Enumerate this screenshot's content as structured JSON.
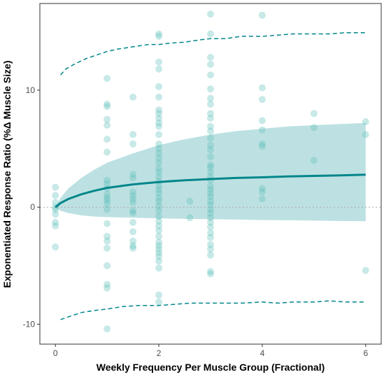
{
  "chart_data": {
    "type": "scatter",
    "title": "",
    "xlabel": "Weekly Frequency Per Muscle Group (Fractional)",
    "ylabel": "Exponentiated Response Ratio (%Δ Muscle Size)",
    "xlim": [
      -0.3,
      6.3
    ],
    "ylim": [
      -11.7,
      17.4
    ],
    "x_ticks": [
      0,
      2,
      4,
      6
    ],
    "y_ticks": [
      -10,
      0,
      10
    ],
    "grid": false,
    "reference_line_y": 0,
    "colors": {
      "points": "#5fbfbb",
      "line": "#00868b",
      "band": "#b2dcdd",
      "reference": "#a9a9a9"
    },
    "series": [
      {
        "kind": "points",
        "points": [
          [
            0,
            1.7
          ],
          [
            0,
            1.0
          ],
          [
            0,
            0.4
          ],
          [
            0,
            0.0
          ],
          [
            0,
            -0.2
          ],
          [
            0,
            -0.6
          ],
          [
            0,
            -1.3
          ],
          [
            0,
            -1.6
          ],
          [
            0,
            -3.4
          ],
          [
            1,
            11.0
          ],
          [
            1,
            8.8
          ],
          [
            1,
            8.6
          ],
          [
            1,
            7.5
          ],
          [
            1,
            7.0
          ],
          [
            1,
            5.8
          ],
          [
            1,
            4.7
          ],
          [
            1,
            2.3
          ],
          [
            1,
            2.0
          ],
          [
            1,
            1.6
          ],
          [
            1,
            1.1
          ],
          [
            1,
            0.8
          ],
          [
            1,
            0.6
          ],
          [
            1,
            0.3
          ],
          [
            1,
            -0.2
          ],
          [
            1,
            -1.4
          ],
          [
            1,
            -2.5
          ],
          [
            1,
            -2.9
          ],
          [
            1,
            -3.5
          ],
          [
            1,
            -5.0
          ],
          [
            1,
            -6.6
          ],
          [
            1,
            -6.9
          ],
          [
            1,
            -10.4
          ],
          [
            1.5,
            9.4
          ],
          [
            1.5,
            6.2
          ],
          [
            1.5,
            5.4
          ],
          [
            1.5,
            2.8
          ],
          [
            1.5,
            2.5
          ],
          [
            1.5,
            1.3
          ],
          [
            1.5,
            1.0
          ],
          [
            1.5,
            0.7
          ],
          [
            1.5,
            0.4
          ],
          [
            1.5,
            -0.3
          ],
          [
            1.5,
            -0.5
          ],
          [
            1.5,
            -1.3
          ],
          [
            1.5,
            -2.1
          ],
          [
            1.5,
            -2.9
          ],
          [
            1.5,
            -3.3
          ],
          [
            1.5,
            -3.5
          ],
          [
            2,
            14.8
          ],
          [
            2,
            14.6
          ],
          [
            2,
            12.4
          ],
          [
            2,
            11.8
          ],
          [
            2,
            10.3
          ],
          [
            2,
            9.4
          ],
          [
            2,
            8.3
          ],
          [
            2,
            8.0
          ],
          [
            2,
            7.6
          ],
          [
            2,
            7.2
          ],
          [
            2,
            6.9
          ],
          [
            2,
            6.2
          ],
          [
            2,
            5.4
          ],
          [
            2,
            5.0
          ],
          [
            2,
            4.6
          ],
          [
            2,
            4.2
          ],
          [
            2,
            3.8
          ],
          [
            2,
            3.3
          ],
          [
            2,
            3.0
          ],
          [
            2,
            2.6
          ],
          [
            2,
            2.2
          ],
          [
            2,
            1.8
          ],
          [
            2,
            1.5
          ],
          [
            2,
            1.2
          ],
          [
            2,
            0.8
          ],
          [
            2,
            0.5
          ],
          [
            2,
            0.1
          ],
          [
            2,
            -0.3
          ],
          [
            2,
            -0.8
          ],
          [
            2,
            -1.2
          ],
          [
            2,
            -1.6
          ],
          [
            2,
            -2.0
          ],
          [
            2,
            -2.5
          ],
          [
            2,
            -3.0
          ],
          [
            2,
            -3.3
          ],
          [
            2,
            -3.6
          ],
          [
            2,
            -3.9
          ],
          [
            2,
            -4.2
          ],
          [
            2,
            -4.6
          ],
          [
            2,
            -5.2
          ],
          [
            2,
            -7.5
          ],
          [
            2,
            -8.1
          ],
          [
            2.6,
            0.5
          ],
          [
            2.6,
            -0.9
          ],
          [
            3,
            16.5
          ],
          [
            3,
            14.8
          ],
          [
            3,
            12.8
          ],
          [
            3,
            12.2
          ],
          [
            3,
            11.3
          ],
          [
            3,
            10.1
          ],
          [
            3,
            9.3
          ],
          [
            3,
            8.8
          ],
          [
            3,
            8.0
          ],
          [
            3,
            7.6
          ],
          [
            3,
            6.9
          ],
          [
            3,
            6.5
          ],
          [
            3,
            5.9
          ],
          [
            3,
            5.3
          ],
          [
            3,
            4.9
          ],
          [
            3,
            4.3
          ],
          [
            3,
            3.6
          ],
          [
            3,
            3.4
          ],
          [
            3,
            3.0
          ],
          [
            3,
            2.6
          ],
          [
            3,
            2.3
          ],
          [
            3,
            1.8
          ],
          [
            3,
            1.5
          ],
          [
            3,
            1.2
          ],
          [
            3,
            0.9
          ],
          [
            3,
            0.5
          ],
          [
            3,
            0.2
          ],
          [
            3,
            -0.2
          ],
          [
            3,
            -0.5
          ],
          [
            3,
            -0.9
          ],
          [
            3,
            -1.3
          ],
          [
            3,
            -1.7
          ],
          [
            3,
            -2.2
          ],
          [
            3,
            -2.6
          ],
          [
            3,
            -3.2
          ],
          [
            3,
            -3.6
          ],
          [
            3,
            -4.1
          ],
          [
            3,
            -5.5
          ],
          [
            3,
            -5.7
          ],
          [
            4,
            16.4
          ],
          [
            4,
            10.2
          ],
          [
            4,
            9.2
          ],
          [
            4,
            7.4
          ],
          [
            4,
            6.6
          ],
          [
            4,
            5.4
          ],
          [
            4,
            5.2
          ],
          [
            4,
            1.6
          ],
          [
            4,
            1.3
          ],
          [
            4,
            0.7
          ],
          [
            5,
            8.0
          ],
          [
            5,
            6.8
          ],
          [
            5,
            4.0
          ],
          [
            6,
            7.3
          ],
          [
            6,
            6.2
          ],
          [
            6,
            -5.4
          ]
        ]
      },
      {
        "kind": "fitted",
        "x": [
          0,
          0.1,
          0.25,
          0.5,
          0.75,
          1,
          1.5,
          2,
          2.5,
          3,
          3.5,
          4,
          4.5,
          5,
          5.5,
          6
        ],
        "y": [
          0,
          0.35,
          0.7,
          1.1,
          1.4,
          1.65,
          1.95,
          2.15,
          2.3,
          2.4,
          2.5,
          2.55,
          2.62,
          2.67,
          2.72,
          2.77
        ]
      },
      {
        "kind": "confidence_band",
        "x": [
          0,
          0.1,
          0.25,
          0.5,
          0.75,
          1,
          1.5,
          2,
          2.5,
          3,
          3.5,
          4,
          4.5,
          5,
          5.5,
          6
        ],
        "upper": [
          0,
          0.8,
          1.6,
          2.5,
          3.2,
          3.8,
          4.6,
          5.3,
          5.8,
          6.2,
          6.5,
          6.7,
          6.9,
          7.0,
          7.1,
          7.2
        ],
        "lower": [
          0,
          -0.3,
          -0.5,
          -0.7,
          -0.8,
          -0.85,
          -0.9,
          -0.95,
          -1.0,
          -1.03,
          -1.06,
          -1.1,
          -1.12,
          -1.15,
          -1.18,
          -1.2
        ]
      },
      {
        "kind": "prediction_upper",
        "x": [
          0.1,
          0.2,
          0.4,
          0.6,
          0.8,
          1,
          1.2,
          1.5,
          1.8,
          2,
          2.2,
          2.5,
          2.8,
          3,
          3.3,
          3.6,
          4,
          4.3,
          4.6,
          5,
          5.3,
          5.6,
          6
        ],
        "y": [
          11.3,
          11.8,
          12.3,
          12.7,
          13.0,
          13.3,
          13.5,
          13.7,
          13.9,
          13.9,
          14.0,
          14.1,
          14.3,
          14.4,
          14.4,
          14.6,
          14.6,
          14.7,
          14.8,
          14.8,
          14.8,
          14.9,
          14.9
        ]
      },
      {
        "kind": "prediction_lower",
        "x": [
          0.1,
          0.3,
          0.5,
          0.8,
          1,
          1.3,
          1.6,
          2,
          2.3,
          2.6,
          3,
          3.3,
          3.6,
          4,
          4.3,
          4.6,
          5,
          5.3,
          5.6,
          6
        ],
        "y": [
          -9.6,
          -9.3,
          -9.0,
          -8.8,
          -8.7,
          -8.5,
          -8.4,
          -8.4,
          -8.3,
          -8.2,
          -8.2,
          -8.2,
          -8.2,
          -8.1,
          -8.2,
          -8.1,
          -8.1,
          -8.0,
          -8.1,
          -8.1
        ]
      }
    ]
  }
}
